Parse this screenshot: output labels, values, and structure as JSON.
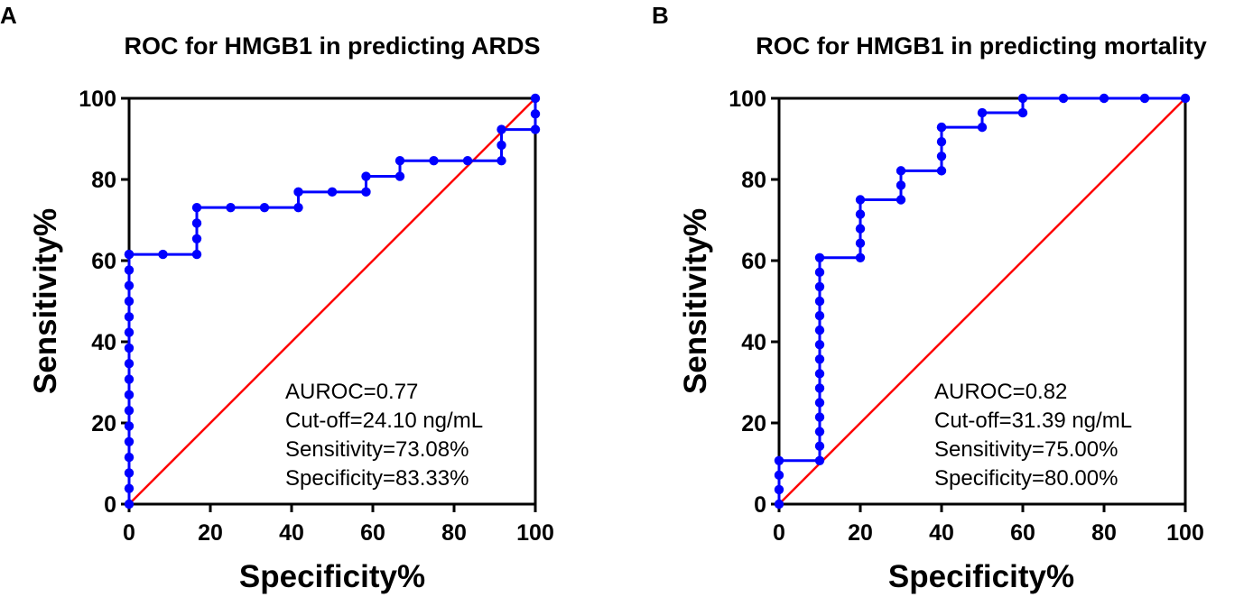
{
  "chart_data": [
    {
      "panel": "A",
      "type": "line",
      "title": "ROC for HMGB1 in predicting ARDS",
      "xlabel": "Specificity%",
      "ylabel": "Sensitivity%",
      "xlim": [
        0,
        100
      ],
      "ylim": [
        0,
        100
      ],
      "xticks": [
        "0",
        "20",
        "40",
        "60",
        "80",
        "100"
      ],
      "yticks": [
        "0",
        "20",
        "40",
        "60",
        "80",
        "100"
      ],
      "grid": false,
      "annotations": [
        "AUROC=0.77",
        "Cut-off=24.10 ng/mL",
        "Sensitivity=73.08%",
        "Specificity=83.33%"
      ],
      "series": [
        {
          "name": "ROC curve",
          "color": "#0000ff",
          "marker": "circle",
          "x": [
            0,
            0,
            0,
            0,
            0,
            0,
            0,
            0,
            0,
            0,
            0,
            0,
            0,
            0,
            0,
            0,
            0,
            0,
            8.33,
            16.67,
            16.67,
            16.67,
            16.67,
            25,
            33.33,
            41.67,
            41.67,
            50,
            58.33,
            58.33,
            66.67,
            66.67,
            75,
            83.33,
            91.67,
            91.67,
            91.67,
            100,
            100,
            100
          ],
          "y": [
            0,
            3.85,
            7.69,
            11.54,
            15.38,
            19.23,
            23.08,
            26.92,
            30.77,
            34.62,
            38.46,
            42.31,
            46.15,
            50,
            53.85,
            57.69,
            61.54,
            61.54,
            61.54,
            61.54,
            65.38,
            69.23,
            73.08,
            73.08,
            73.08,
            73.08,
            76.92,
            76.92,
            76.92,
            80.77,
            80.77,
            84.62,
            84.62,
            84.62,
            84.62,
            88.46,
            92.31,
            92.31,
            96.15,
            100
          ]
        },
        {
          "name": "Reference line",
          "color": "#ff0000",
          "marker": "none",
          "x": [
            0,
            100
          ],
          "y": [
            0,
            100
          ]
        }
      ]
    },
    {
      "panel": "B",
      "type": "line",
      "title": "ROC for HMGB1 in predicting mortality",
      "xlabel": "Specificity%",
      "ylabel": "Sensitivity%",
      "xlim": [
        0,
        100
      ],
      "ylim": [
        0,
        100
      ],
      "xticks": [
        "0",
        "20",
        "40",
        "60",
        "80",
        "100"
      ],
      "yticks": [
        "0",
        "20",
        "40",
        "60",
        "80",
        "100"
      ],
      "grid": false,
      "annotations": [
        "AUROC=0.82",
        "Cut-off=31.39 ng/mL",
        "Sensitivity=75.00%",
        "Specificity=80.00%"
      ],
      "series": [
        {
          "name": "ROC curve",
          "color": "#0000ff",
          "marker": "circle",
          "x": [
            0,
            0,
            0,
            0,
            10,
            10,
            10,
            10,
            10,
            10,
            10,
            10,
            10,
            10,
            10,
            10,
            10,
            10,
            10,
            20,
            20,
            20,
            20,
            20,
            30,
            30,
            30,
            40,
            40,
            40,
            40,
            40,
            50,
            50,
            60,
            60,
            70,
            80,
            90,
            100
          ],
          "y": [
            0,
            3.57,
            7.14,
            10.71,
            10.71,
            14.29,
            17.86,
            21.43,
            25,
            28.57,
            32.14,
            35.71,
            39.29,
            42.86,
            46.43,
            50,
            53.57,
            57.14,
            60.71,
            60.71,
            64.29,
            67.86,
            71.43,
            75,
            75,
            78.57,
            82.14,
            82.14,
            85.71,
            89.29,
            92.86,
            92.86,
            92.86,
            96.43,
            96.43,
            100,
            100,
            100,
            100,
            100
          ]
        },
        {
          "name": "Reference line",
          "color": "#ff0000",
          "marker": "none",
          "x": [
            0,
            100
          ],
          "y": [
            0,
            100
          ]
        }
      ]
    }
  ]
}
